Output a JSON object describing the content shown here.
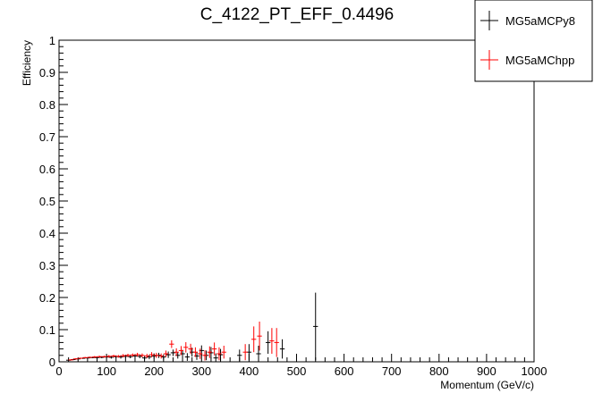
{
  "chart_data": {
    "type": "scatter",
    "title": "C_4122_PT_EFF_0.4496",
    "xlabel": "Momentum (GeV/c)",
    "ylabel": "Efficiency",
    "xlim": [
      0,
      1000
    ],
    "ylim": [
      0,
      1
    ],
    "x_ticks": [
      "0",
      "100",
      "200",
      "300",
      "400",
      "500",
      "600",
      "700",
      "800",
      "900",
      "1000"
    ],
    "y_ticks": [
      "0",
      "0.1",
      "0.2",
      "0.3",
      "0.4",
      "0.5",
      "0.6",
      "0.7",
      "0.8",
      "0.9",
      "1"
    ],
    "grid": false,
    "legend_position": "top-right",
    "series": [
      {
        "name": "MG5aMCPy8",
        "color": "#000000",
        "points": [
          {
            "x": 20,
            "y": 0.005,
            "xerr": 5,
            "yerr": 0.002
          },
          {
            "x": 30,
            "y": 0.007,
            "xerr": 5,
            "yerr": 0.002
          },
          {
            "x": 40,
            "y": 0.009,
            "xerr": 5,
            "yerr": 0.002
          },
          {
            "x": 50,
            "y": 0.011,
            "xerr": 5,
            "yerr": 0.002
          },
          {
            "x": 60,
            "y": 0.012,
            "xerr": 5,
            "yerr": 0.002
          },
          {
            "x": 70,
            "y": 0.013,
            "xerr": 5,
            "yerr": 0.002
          },
          {
            "x": 80,
            "y": 0.013,
            "xerr": 5,
            "yerr": 0.003
          },
          {
            "x": 90,
            "y": 0.014,
            "xerr": 5,
            "yerr": 0.003
          },
          {
            "x": 100,
            "y": 0.015,
            "xerr": 5,
            "yerr": 0.004
          },
          {
            "x": 110,
            "y": 0.014,
            "xerr": 5,
            "yerr": 0.004
          },
          {
            "x": 120,
            "y": 0.016,
            "xerr": 5,
            "yerr": 0.004
          },
          {
            "x": 130,
            "y": 0.015,
            "xerr": 5,
            "yerr": 0.005
          },
          {
            "x": 140,
            "y": 0.017,
            "xerr": 5,
            "yerr": 0.005
          },
          {
            "x": 150,
            "y": 0.016,
            "xerr": 5,
            "yerr": 0.005
          },
          {
            "x": 160,
            "y": 0.018,
            "xerr": 5,
            "yerr": 0.006
          },
          {
            "x": 170,
            "y": 0.017,
            "xerr": 5,
            "yerr": 0.006
          },
          {
            "x": 180,
            "y": 0.012,
            "xerr": 5,
            "yerr": 0.006
          },
          {
            "x": 190,
            "y": 0.015,
            "xerr": 5,
            "yerr": 0.007
          },
          {
            "x": 200,
            "y": 0.018,
            "xerr": 5,
            "yerr": 0.008
          },
          {
            "x": 210,
            "y": 0.02,
            "xerr": 5,
            "yerr": 0.008
          },
          {
            "x": 220,
            "y": 0.015,
            "xerr": 5,
            "yerr": 0.008
          },
          {
            "x": 230,
            "y": 0.022,
            "xerr": 5,
            "yerr": 0.01
          },
          {
            "x": 240,
            "y": 0.028,
            "xerr": 5,
            "yerr": 0.01
          },
          {
            "x": 250,
            "y": 0.02,
            "xerr": 5,
            "yerr": 0.01
          },
          {
            "x": 260,
            "y": 0.025,
            "xerr": 5,
            "yerr": 0.012
          },
          {
            "x": 270,
            "y": 0.015,
            "xerr": 5,
            "yerr": 0.012
          },
          {
            "x": 280,
            "y": 0.03,
            "xerr": 5,
            "yerr": 0.014
          },
          {
            "x": 290,
            "y": 0.018,
            "xerr": 5,
            "yerr": 0.012
          },
          {
            "x": 300,
            "y": 0.035,
            "xerr": 5,
            "yerr": 0.016
          },
          {
            "x": 310,
            "y": 0.02,
            "xerr": 5,
            "yerr": 0.015
          },
          {
            "x": 320,
            "y": 0.028,
            "xerr": 5,
            "yerr": 0.018
          },
          {
            "x": 330,
            "y": 0.012,
            "xerr": 5,
            "yerr": 0.014
          },
          {
            "x": 340,
            "y": 0.022,
            "xerr": 5,
            "yerr": 0.018
          },
          {
            "x": 380,
            "y": 0.02,
            "xerr": 5,
            "yerr": 0.018
          },
          {
            "x": 400,
            "y": 0.03,
            "xerr": 5,
            "yerr": 0.025
          },
          {
            "x": 420,
            "y": 0.025,
            "xerr": 5,
            "yerr": 0.025
          },
          {
            "x": 440,
            "y": 0.06,
            "xerr": 5,
            "yerr": 0.035
          },
          {
            "x": 470,
            "y": 0.04,
            "xerr": 5,
            "yerr": 0.03
          },
          {
            "x": 540,
            "y": 0.11,
            "xerr": 5,
            "yerr": 0.105
          }
        ]
      },
      {
        "name": "MG5aMChpp",
        "color": "#ff0000",
        "points": [
          {
            "x": 25,
            "y": 0.006,
            "xerr": 5,
            "yerr": 0.002
          },
          {
            "x": 35,
            "y": 0.009,
            "xerr": 5,
            "yerr": 0.002
          },
          {
            "x": 45,
            "y": 0.011,
            "xerr": 5,
            "yerr": 0.002
          },
          {
            "x": 55,
            "y": 0.013,
            "xerr": 5,
            "yerr": 0.002
          },
          {
            "x": 65,
            "y": 0.014,
            "xerr": 5,
            "yerr": 0.002
          },
          {
            "x": 75,
            "y": 0.015,
            "xerr": 5,
            "yerr": 0.003
          },
          {
            "x": 85,
            "y": 0.016,
            "xerr": 5,
            "yerr": 0.003
          },
          {
            "x": 95,
            "y": 0.016,
            "xerr": 5,
            "yerr": 0.003
          },
          {
            "x": 105,
            "y": 0.017,
            "xerr": 5,
            "yerr": 0.004
          },
          {
            "x": 115,
            "y": 0.018,
            "xerr": 5,
            "yerr": 0.004
          },
          {
            "x": 125,
            "y": 0.017,
            "xerr": 5,
            "yerr": 0.004
          },
          {
            "x": 135,
            "y": 0.019,
            "xerr": 5,
            "yerr": 0.005
          },
          {
            "x": 145,
            "y": 0.02,
            "xerr": 5,
            "yerr": 0.005
          },
          {
            "x": 155,
            "y": 0.021,
            "xerr": 5,
            "yerr": 0.005
          },
          {
            "x": 165,
            "y": 0.022,
            "xerr": 5,
            "yerr": 0.006
          },
          {
            "x": 175,
            "y": 0.02,
            "xerr": 5,
            "yerr": 0.006
          },
          {
            "x": 185,
            "y": 0.018,
            "xerr": 5,
            "yerr": 0.007
          },
          {
            "x": 195,
            "y": 0.022,
            "xerr": 5,
            "yerr": 0.008
          },
          {
            "x": 205,
            "y": 0.02,
            "xerr": 5,
            "yerr": 0.008
          },
          {
            "x": 215,
            "y": 0.018,
            "xerr": 5,
            "yerr": 0.008
          },
          {
            "x": 225,
            "y": 0.025,
            "xerr": 5,
            "yerr": 0.01
          },
          {
            "x": 237,
            "y": 0.055,
            "xerr": 5,
            "yerr": 0.012
          },
          {
            "x": 247,
            "y": 0.03,
            "xerr": 5,
            "yerr": 0.012
          },
          {
            "x": 257,
            "y": 0.035,
            "xerr": 5,
            "yerr": 0.014
          },
          {
            "x": 267,
            "y": 0.045,
            "xerr": 5,
            "yerr": 0.016
          },
          {
            "x": 277,
            "y": 0.04,
            "xerr": 5,
            "yerr": 0.016
          },
          {
            "x": 287,
            "y": 0.03,
            "xerr": 5,
            "yerr": 0.015
          },
          {
            "x": 297,
            "y": 0.025,
            "xerr": 5,
            "yerr": 0.016
          },
          {
            "x": 307,
            "y": 0.02,
            "xerr": 5,
            "yerr": 0.016
          },
          {
            "x": 317,
            "y": 0.03,
            "xerr": 5,
            "yerr": 0.018
          },
          {
            "x": 327,
            "y": 0.04,
            "xerr": 5,
            "yerr": 0.02
          },
          {
            "x": 337,
            "y": 0.025,
            "xerr": 5,
            "yerr": 0.02
          },
          {
            "x": 347,
            "y": 0.03,
            "xerr": 5,
            "yerr": 0.02
          },
          {
            "x": 392,
            "y": 0.03,
            "xerr": 5,
            "yerr": 0.025
          },
          {
            "x": 410,
            "y": 0.07,
            "xerr": 5,
            "yerr": 0.04
          },
          {
            "x": 422,
            "y": 0.08,
            "xerr": 5,
            "yerr": 0.045
          },
          {
            "x": 448,
            "y": 0.065,
            "xerr": 5,
            "yerr": 0.04
          },
          {
            "x": 458,
            "y": 0.06,
            "xerr": 5,
            "yerr": 0.045
          }
        ]
      }
    ]
  }
}
